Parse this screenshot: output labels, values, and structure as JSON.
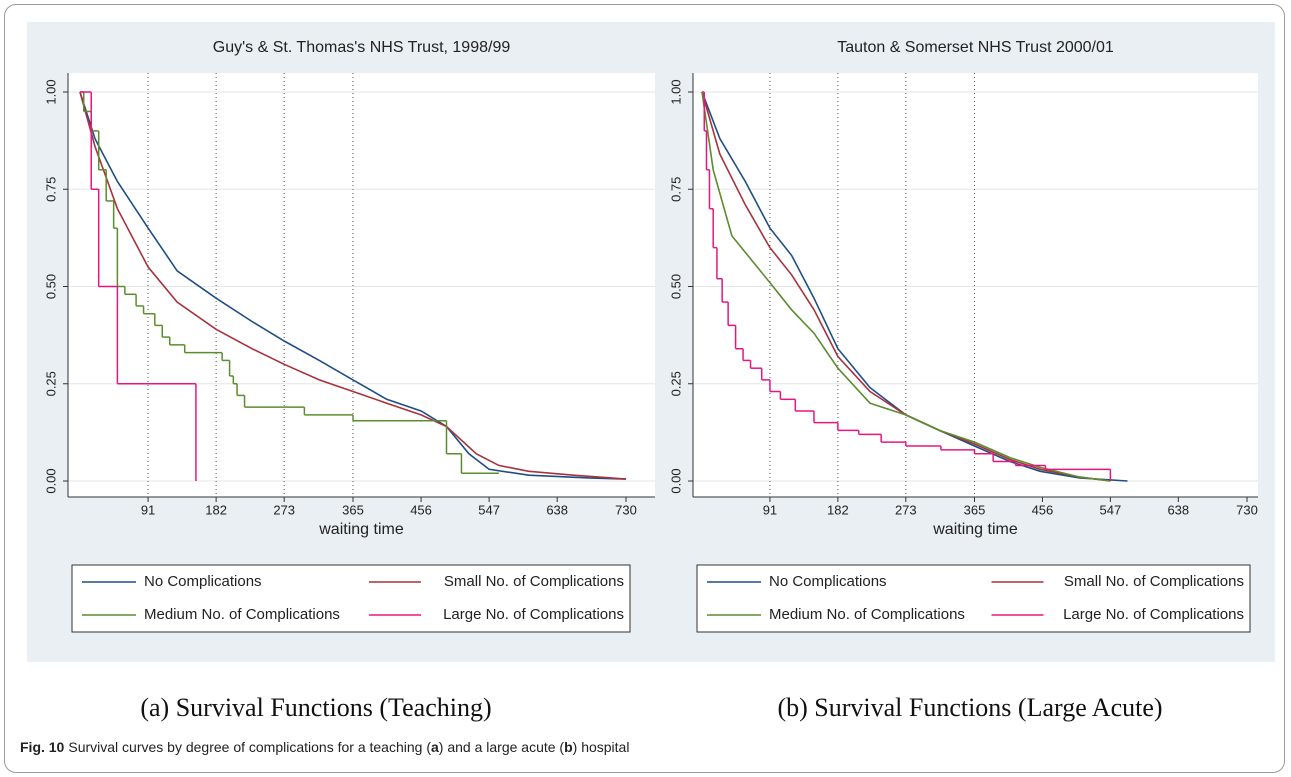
{
  "chart_data": [
    {
      "type": "line",
      "title": "Guy's & St. Thomas's NHS Trust, 1998/99",
      "x_label": "waiting time",
      "xlim": [
        0,
        730
      ],
      "xticks": [
        91,
        182,
        273,
        365,
        456,
        547,
        638,
        730
      ],
      "ylim": [
        0,
        1
      ],
      "yticks": [
        {
          "value": 0,
          "label": "0.00"
        },
        {
          "value": 0.25,
          "label": "0.25"
        },
        {
          "value": 0.5,
          "label": "0.50"
        },
        {
          "value": 0.75,
          "label": "0.75"
        },
        {
          "value": 1,
          "label": "1.00"
        }
      ],
      "grid": true,
      "reference_lines": [
        91,
        182,
        273,
        365
      ],
      "series": [
        {
          "name": "No Complications",
          "color": "#1f4e86",
          "step": false,
          "x": [
            0,
            20,
            50,
            91,
            130,
            182,
            230,
            273,
            320,
            365,
            410,
            456,
            490,
            520,
            547,
            600,
            680,
            730
          ],
          "values": [
            1,
            0.88,
            0.77,
            0.65,
            0.54,
            0.47,
            0.41,
            0.36,
            0.31,
            0.26,
            0.21,
            0.18,
            0.14,
            0.07,
            0.03,
            0.015,
            0.008,
            0.005
          ]
        },
        {
          "name": "Small No. of Complications",
          "color": "#a8323c",
          "step": false,
          "x": [
            0,
            20,
            50,
            91,
            130,
            182,
            230,
            273,
            320,
            365,
            410,
            456,
            490,
            530,
            560,
            600,
            660,
            730
          ],
          "values": [
            1,
            0.86,
            0.7,
            0.55,
            0.46,
            0.39,
            0.34,
            0.3,
            0.26,
            0.23,
            0.2,
            0.17,
            0.14,
            0.07,
            0.04,
            0.025,
            0.015,
            0.005
          ]
        },
        {
          "name": "Medium No. of Complications",
          "color": "#5b8c2e",
          "step": true,
          "x": [
            0,
            5,
            15,
            25,
            35,
            45,
            50,
            60,
            75,
            85,
            100,
            110,
            120,
            140,
            190,
            200,
            205,
            210,
            220,
            300,
            365,
            490,
            510,
            560
          ],
          "values": [
            1,
            0.95,
            0.9,
            0.8,
            0.72,
            0.65,
            0.5,
            0.48,
            0.45,
            0.43,
            0.4,
            0.37,
            0.35,
            0.33,
            0.31,
            0.27,
            0.25,
            0.22,
            0.19,
            0.17,
            0.155,
            0.07,
            0.02,
            0.02
          ]
        },
        {
          "name": "Large No. of Complications",
          "color": "#e8157e",
          "step": true,
          "x": [
            0,
            15,
            25,
            50,
            155
          ],
          "values": [
            1,
            0.75,
            0.5,
            0.25,
            0
          ]
        }
      ]
    },
    {
      "type": "line",
      "title": "Tauton  & Somerset NHS Trust 2000/01",
      "x_label": "waiting time",
      "xlim": [
        0,
        730
      ],
      "xticks": [
        91,
        182,
        273,
        365,
        456,
        547,
        638,
        730
      ],
      "ylim": [
        0,
        1
      ],
      "yticks": [
        {
          "value": 0,
          "label": "0.00"
        },
        {
          "value": 0.25,
          "label": "0.25"
        },
        {
          "value": 0.5,
          "label": "0.50"
        },
        {
          "value": 0.75,
          "label": "0.75"
        },
        {
          "value": 1,
          "label": "1.00"
        }
      ],
      "grid": true,
      "reference_lines": [
        91,
        182,
        273,
        365
      ],
      "series": [
        {
          "name": "No Complications",
          "color": "#1f4e86",
          "step": false,
          "x": [
            0,
            24,
            58,
            91,
            120,
            150,
            182,
            225,
            273,
            318,
            365,
            413,
            453,
            506,
            570
          ],
          "values": [
            1,
            0.88,
            0.77,
            0.65,
            0.58,
            0.47,
            0.34,
            0.24,
            0.17,
            0.13,
            0.09,
            0.05,
            0.025,
            0.008,
            0
          ]
        },
        {
          "name": "Small No. of Complications",
          "color": "#a8323c",
          "step": false,
          "x": [
            0,
            24,
            58,
            91,
            120,
            150,
            182,
            225,
            273,
            318,
            365,
            413,
            453,
            506,
            547
          ],
          "values": [
            1,
            0.84,
            0.71,
            0.6,
            0.53,
            0.44,
            0.32,
            0.23,
            0.17,
            0.13,
            0.095,
            0.055,
            0.03,
            0.01,
            0
          ]
        },
        {
          "name": "Medium No. of Complications",
          "color": "#5b8c2e",
          "step": false,
          "x": [
            0,
            15,
            40,
            91,
            120,
            150,
            182,
            225,
            273,
            318,
            365,
            413,
            453,
            506,
            547
          ],
          "values": [
            1,
            0.8,
            0.63,
            0.51,
            0.44,
            0.38,
            0.29,
            0.2,
            0.17,
            0.13,
            0.1,
            0.06,
            0.035,
            0.01,
            0
          ]
        },
        {
          "name": "Large No. of Complications",
          "color": "#e8157e",
          "step": true,
          "x": [
            0,
            3,
            6,
            10,
            15,
            20,
            27,
            35,
            45,
            55,
            65,
            80,
            91,
            105,
            125,
            150,
            182,
            210,
            240,
            273,
            320,
            365,
            390,
            420,
            460,
            547
          ],
          "values": [
            1,
            0.9,
            0.8,
            0.7,
            0.6,
            0.52,
            0.46,
            0.4,
            0.34,
            0.31,
            0.29,
            0.26,
            0.23,
            0.21,
            0.18,
            0.15,
            0.13,
            0.12,
            0.1,
            0.09,
            0.08,
            0.07,
            0.05,
            0.04,
            0.03,
            0
          ]
        }
      ]
    }
  ],
  "subcaptions": [
    "(a) Survival Functions (Teaching)",
    "(b) Survival Functions (Large Acute)"
  ],
  "caption": {
    "label": "Fig. 10",
    "text": [
      "Survival curves by degree of complications for a teaching (",
      "a",
      ") and a large acute (",
      "b",
      ") hospital"
    ]
  }
}
